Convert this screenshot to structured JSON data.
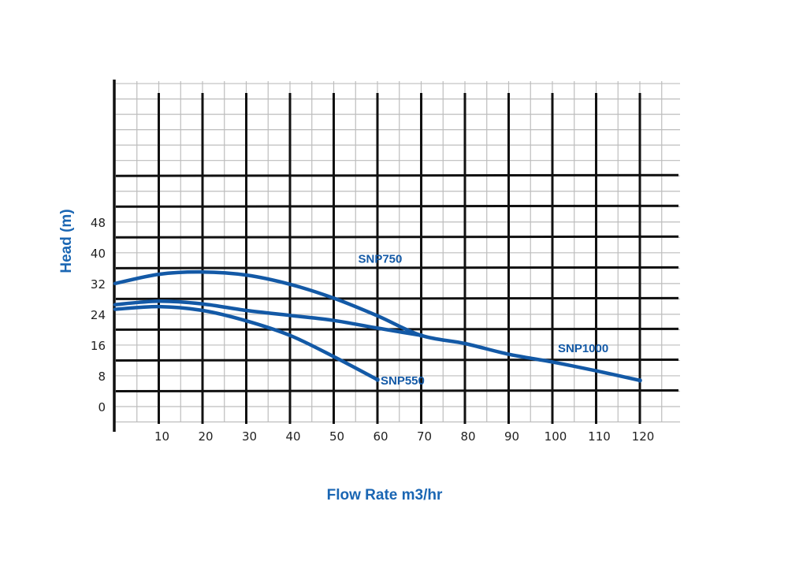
{
  "chart_data": {
    "type": "line",
    "title": "",
    "xlabel": "Flow Rate m3/hr",
    "ylabel": "Head (m)",
    "x_ticks": [
      10,
      20,
      30,
      40,
      50,
      60,
      70,
      80,
      90,
      100,
      110,
      120
    ],
    "y_ticks": [
      0,
      8,
      16,
      24,
      32,
      40,
      48
    ],
    "xlim": [
      0,
      130
    ],
    "ylim": [
      -4,
      88
    ],
    "grid": true,
    "colors": {
      "series": "#1359a6",
      "title": "#1a66b3",
      "grid_major": "#111111",
      "grid_minor": "#bdbdbd"
    },
    "series": [
      {
        "name": "SNP550",
        "x": [
          0,
          10,
          20,
          30,
          40,
          50,
          60
        ],
        "y": [
          25.3,
          26,
          25,
          22.3,
          18.5,
          13,
          7
        ]
      },
      {
        "name": "SNP750",
        "x": [
          0,
          10,
          20,
          30,
          40,
          50,
          60,
          70
        ],
        "y": [
          26.5,
          27.4,
          26.7,
          25,
          23.7,
          22.4,
          20.4,
          18.5
        ]
      },
      {
        "name": "SNP1000",
        "x": [
          0,
          10,
          20,
          30,
          40,
          50,
          60,
          70,
          80,
          90,
          100,
          110,
          120
        ],
        "y": [
          32,
          34.4,
          35,
          34.2,
          31.8,
          28.2,
          23.6,
          18.5,
          16.4,
          13.6,
          11.6,
          9.3,
          6.8
        ]
      }
    ]
  }
}
